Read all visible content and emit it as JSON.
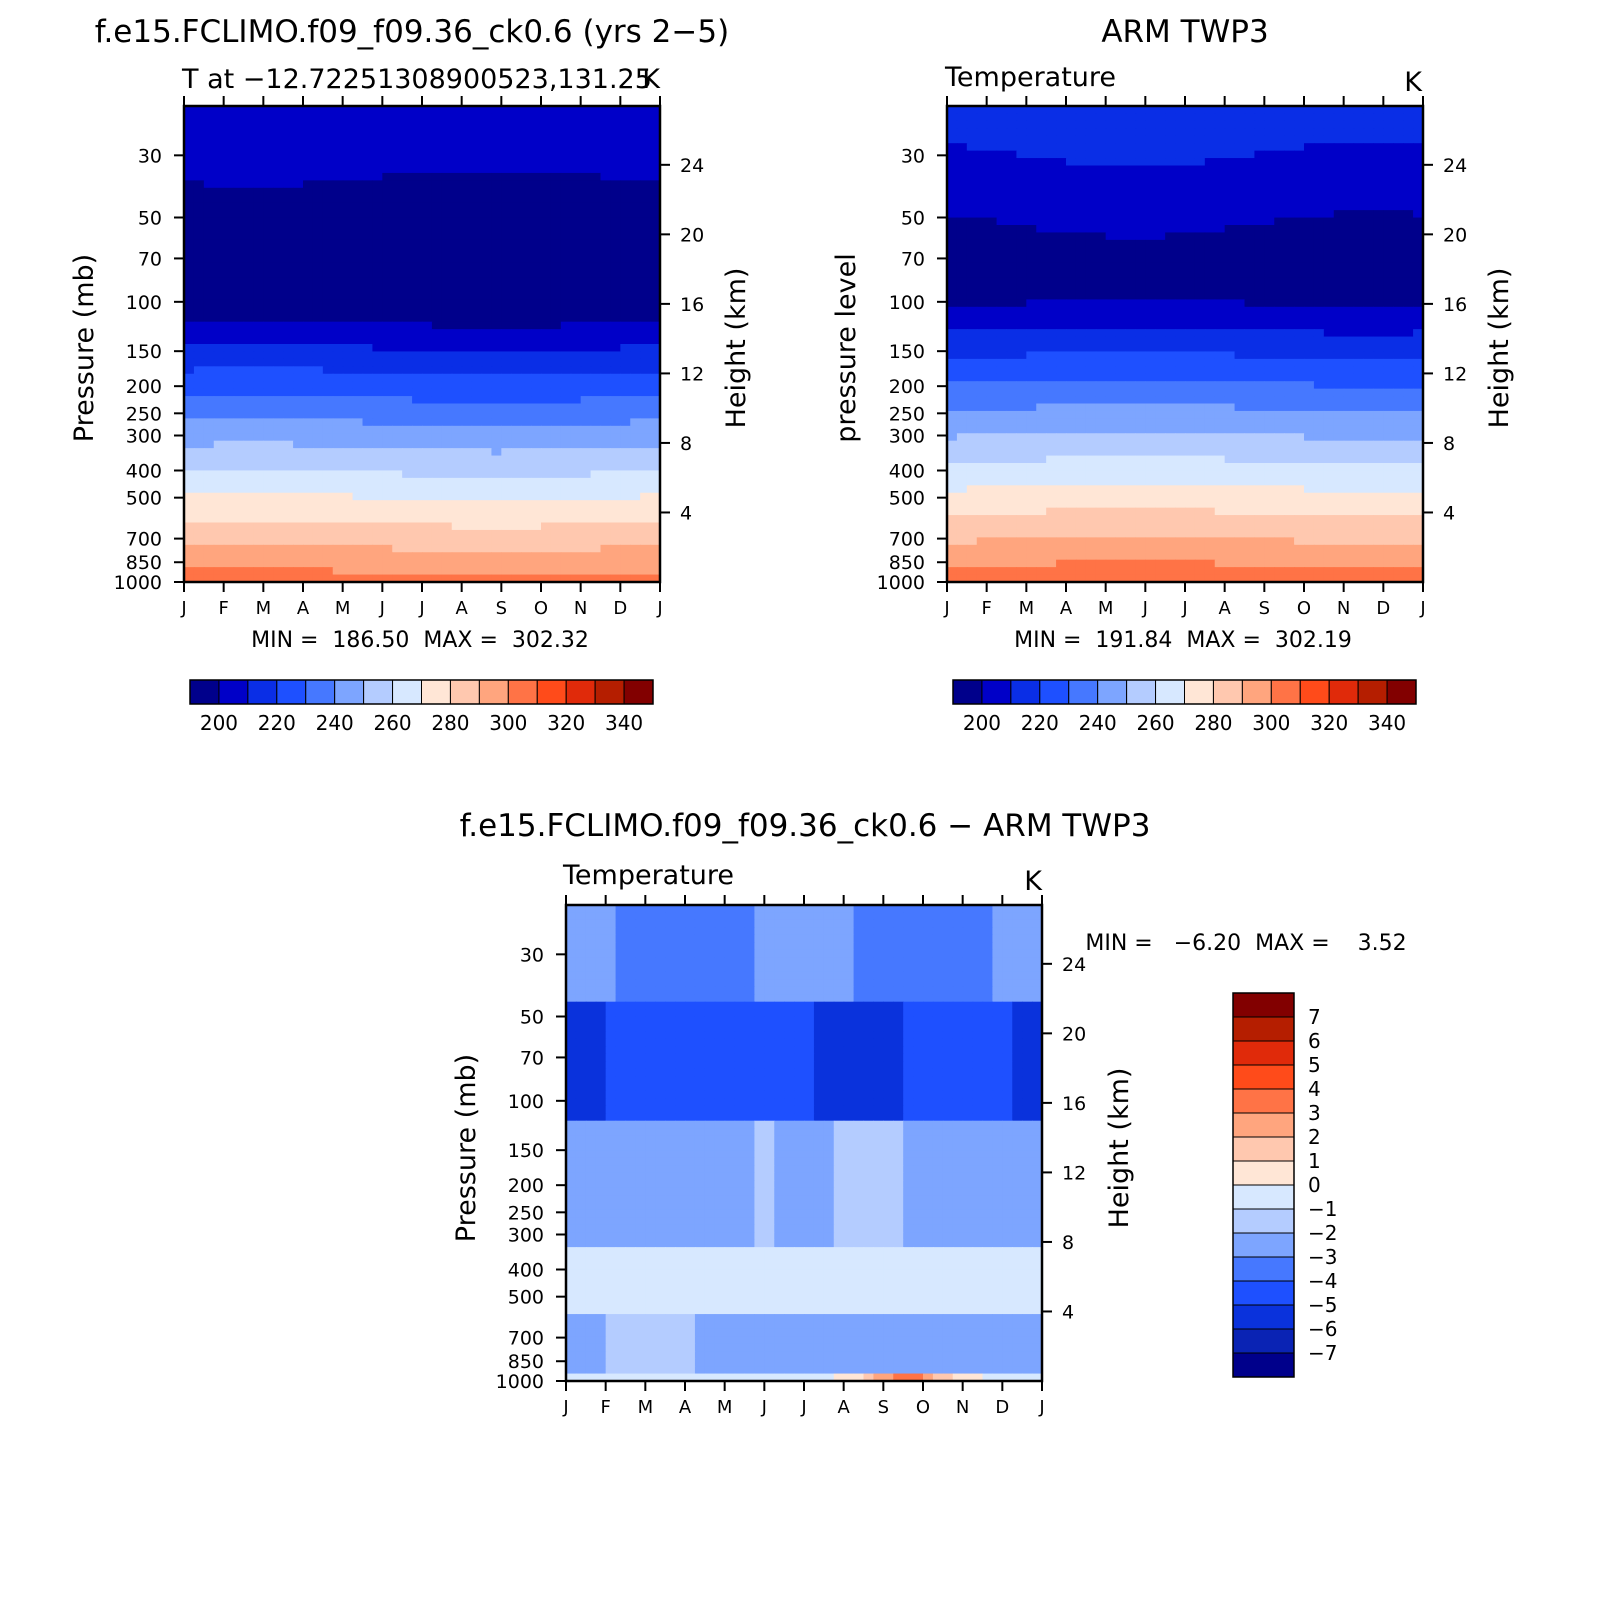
{
  "chart_data": [
    {
      "type": "heatmap",
      "id": "model",
      "title": "f.e15.FCLIMO.f09_f09.36_ck0.6 (yrs 2-5)",
      "subtitle_left": "T at -12.72251308900523,131.25",
      "subtitle_right": "K",
      "ylabel": "Pressure (mb)",
      "ylabel_right": "Height (km)",
      "min_max": "MIN =  186.50  MAX =  302.32",
      "x_ticks": [
        "J",
        "F",
        "M",
        "A",
        "M",
        "J",
        "J",
        "A",
        "S",
        "O",
        "N",
        "D",
        "J"
      ],
      "y_ticks": [
        30,
        50,
        70,
        100,
        150,
        200,
        250,
        300,
        400,
        500,
        700,
        850,
        1000
      ],
      "y_right_ticks": [
        24,
        20,
        16,
        12,
        8,
        4
      ],
      "y_log": true,
      "ylim": [
        20,
        1000
      ],
      "contour_levels": [
        200,
        210,
        220,
        230,
        240,
        250,
        260,
        270,
        280,
        290,
        300,
        310,
        320,
        330,
        340
      ],
      "colorbar_labels": [
        200,
        220,
        240,
        260,
        280,
        300,
        320,
        340
      ],
      "colors": [
        "#00008b",
        "#0000c8",
        "#0a2ee6",
        "#1e50ff",
        "#4678ff",
        "#7da5ff",
        "#b4ccff",
        "#d7e8ff",
        "#ffe6d6",
        "#ffc8af",
        "#ffa57e",
        "#ff7346",
        "#ff4b1a",
        "#e02a0a",
        "#b51e00",
        "#820000"
      ]
    },
    {
      "type": "heatmap",
      "id": "obs",
      "title": "ARM TWP3",
      "subtitle_left": "Temperature",
      "subtitle_right": "K",
      "ylabel": "pressure level",
      "ylabel_right": "Height (km)",
      "min_max": "MIN =  191.84  MAX =  302.19",
      "x_ticks": [
        "J",
        "F",
        "M",
        "A",
        "M",
        "J",
        "J",
        "A",
        "S",
        "O",
        "N",
        "D",
        "J"
      ],
      "y_ticks": [
        30,
        50,
        70,
        100,
        150,
        200,
        250,
        300,
        400,
        500,
        700,
        850,
        1000
      ],
      "y_right_ticks": [
        24,
        20,
        16,
        12,
        8,
        4
      ],
      "y_log": true,
      "ylim": [
        20,
        1000
      ],
      "contour_levels": [
        200,
        210,
        220,
        230,
        240,
        250,
        260,
        270,
        280,
        290,
        300,
        310,
        320,
        330,
        340
      ],
      "colorbar_labels": [
        200,
        220,
        240,
        260,
        280,
        300,
        320,
        340
      ],
      "colors": [
        "#00008b",
        "#0000c8",
        "#0a2ee6",
        "#1e50ff",
        "#4678ff",
        "#7da5ff",
        "#b4ccff",
        "#d7e8ff",
        "#ffe6d6",
        "#ffc8af",
        "#ffa57e",
        "#ff7346",
        "#ff4b1a",
        "#e02a0a",
        "#b51e00",
        "#820000"
      ]
    },
    {
      "type": "heatmap",
      "id": "diff",
      "title": "f.e15.FCLIMO.f09_f09.36_ck0.6 - ARM TWP3",
      "subtitle_left": "Temperature",
      "subtitle_right": "K",
      "ylabel": "Pressure (mb)",
      "ylabel_right": "Height (km)",
      "min_max": "MIN =   -6.20  MAX =    3.52",
      "x_ticks": [
        "J",
        "F",
        "M",
        "A",
        "M",
        "J",
        "J",
        "A",
        "S",
        "O",
        "N",
        "D",
        "J"
      ],
      "y_ticks": [
        30,
        50,
        70,
        100,
        150,
        200,
        250,
        300,
        400,
        500,
        700,
        850,
        1000
      ],
      "y_right_ticks": [
        24,
        20,
        16,
        12,
        8,
        4
      ],
      "y_log": true,
      "ylim": [
        20,
        1000
      ],
      "contour_levels": [
        -7,
        -6,
        -5,
        -4,
        -3,
        -2,
        -1,
        0,
        1,
        2,
        3,
        4,
        5,
        6,
        7
      ],
      "colorbar_labels": [
        7,
        6,
        5,
        4,
        3,
        2,
        1,
        0,
        -1,
        -2,
        -3,
        -4,
        -5,
        -6,
        -7
      ],
      "colors": [
        "#00008b",
        "#0a23b4",
        "#0a32dc",
        "#1e50ff",
        "#4678ff",
        "#7da5ff",
        "#b4ccff",
        "#d7e8ff",
        "#ffe6d6",
        "#ffc8af",
        "#ffa57e",
        "#ff7346",
        "#ff4b1a",
        "#e02a0a",
        "#b51e00",
        "#820000"
      ]
    }
  ]
}
